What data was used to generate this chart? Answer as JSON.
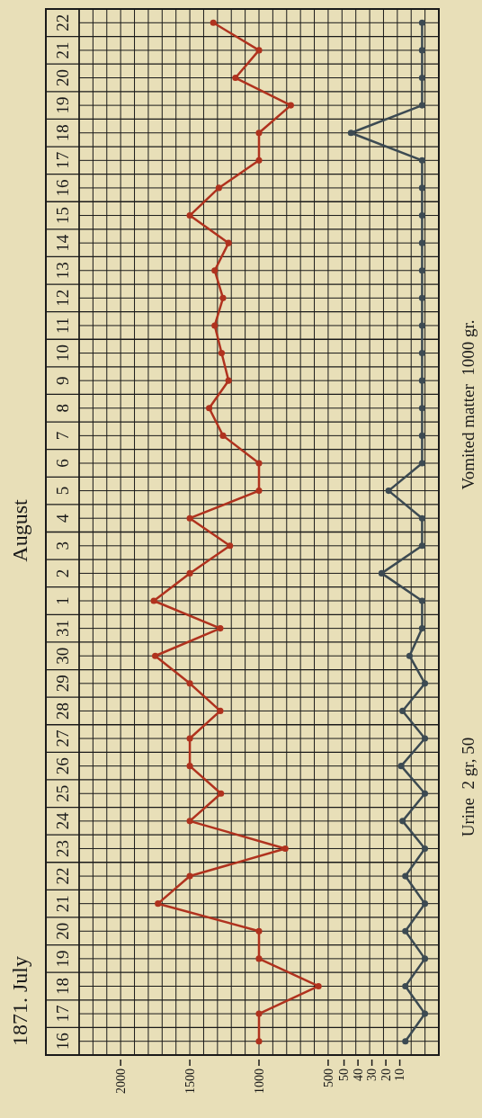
{
  "chart_data": {
    "type": "line",
    "orientation": "horizontal",
    "title": "1871. July",
    "annotations": [
      "August",
      "Urine  2 gr, 50",
      "Vomited matter  1000 gr."
    ],
    "categories": [
      "22",
      "21",
      "20",
      "19",
      "18",
      "17",
      "16",
      "15",
      "14",
      "13",
      "12",
      "11",
      "10",
      "9",
      "8",
      "7",
      "6",
      "5",
      "4",
      "3",
      "2",
      "1",
      "31",
      "30",
      "29",
      "28",
      "27",
      "26",
      "25",
      "24",
      "23",
      "22",
      "21",
      "20",
      "19",
      "18",
      "17",
      "16"
    ],
    "series": [
      {
        "color": "#b0321e",
        "values": [
          1330,
          1000,
          1170,
          770,
          1000,
          1000,
          1290,
          1500,
          1220,
          1320,
          1260,
          1320,
          1270,
          1220,
          1360,
          1260,
          1000,
          1000,
          1500,
          1210,
          1500,
          1760,
          1280,
          1750,
          1500,
          1280,
          1500,
          1500,
          1275,
          1500,
          810,
          1500,
          1730,
          1000,
          1000,
          570,
          1000,
          1000
        ]
      },
      {
        "color": "#3c4a52",
        "axis": "x2",
        "values": [
          -6,
          -6,
          -6,
          -6,
          45,
          -6,
          -6,
          -6,
          -6,
          -6,
          -6,
          -6,
          -6,
          -6,
          -6,
          -6,
          -6,
          18,
          -6,
          -6,
          23,
          -6,
          -6,
          3,
          -8,
          8,
          -8,
          9,
          -8,
          8,
          -8,
          6,
          -8,
          6,
          -8,
          6,
          -8,
          6
        ]
      }
    ],
    "xlim": [
      2300,
      -300
    ],
    "xticks": [
      {
        "value": 2300,
        "label": null
      },
      {
        "value": 2200,
        "label": null
      },
      {
        "value": 2100,
        "label": null
      },
      2000,
      {
        "value": 1900,
        "label": null
      },
      {
        "value": 1800,
        "label": null
      },
      {
        "value": 1700,
        "label": null
      },
      {
        "value": 1600,
        "label": null
      },
      1500,
      {
        "value": 1400,
        "label": null
      },
      {
        "value": 1300,
        "label": null
      },
      {
        "value": 1200,
        "label": null
      },
      {
        "value": 1100,
        "label": null
      },
      1000,
      {
        "value": 900,
        "label": null
      },
      {
        "value": 800,
        "label": null
      },
      {
        "value": 700,
        "label": null
      },
      {
        "value": 600,
        "label": null
      },
      500,
      {
        "value": 400,
        "label": null
      },
      {
        "value": 300,
        "label": null
      },
      {
        "value": 200,
        "label": null
      },
      {
        "value": 100,
        "label": null
      },
      {
        "value": 0,
        "label": null
      },
      {
        "value": -100,
        "label": null
      },
      {
        "value": -200,
        "label": null
      },
      {
        "value": -300,
        "label": null
      }
    ],
    "x2lim": [
      240,
      -18
    ],
    "x2ticks": [
      50,
      40,
      30,
      20,
      10
    ],
    "grid": true,
    "marker": "circle",
    "line_style": "solid"
  }
}
